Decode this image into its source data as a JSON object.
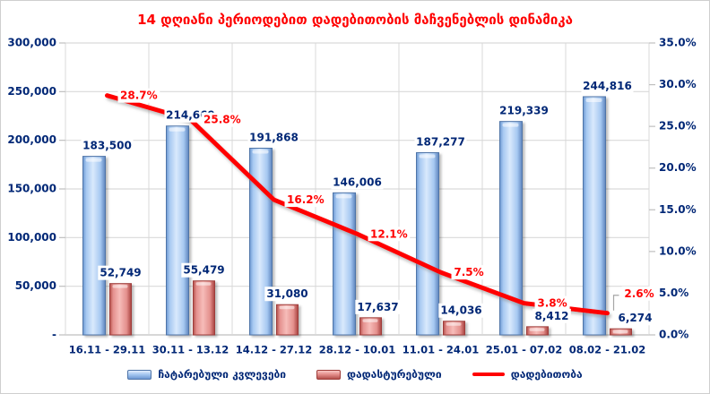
{
  "chart_data": {
    "type": "combo-bar-line",
    "title": "14 დღიანი პერიოდებით დადებითობის მაჩვენებლის დინამიკა",
    "categories": [
      "16.11 - 29.11",
      "30.11 - 13.12",
      "14.12 - 27.12",
      "28.12 - 10.01",
      "11.01 - 24.01",
      "25.01 - 07.02",
      "08.02 - 21.02"
    ],
    "series": [
      {
        "name": "ჩატარებული კვლევები",
        "type": "bar",
        "color_key": "blue",
        "values": [
          183500,
          214669,
          191868,
          146006,
          187277,
          219339,
          244816
        ],
        "labels": [
          "183,500",
          "214,669",
          "191,868",
          "146,006",
          "187,277",
          "219,339",
          "244,816"
        ]
      },
      {
        "name": "დადასტურებული",
        "type": "bar",
        "color_key": "red",
        "values": [
          52749,
          55479,
          31080,
          17637,
          14036,
          8412,
          6274
        ],
        "labels": [
          "52,749",
          "55,479",
          "31,080",
          "17,637",
          "14,036",
          "8,412",
          "6,274"
        ]
      },
      {
        "name": "დადებითობა",
        "type": "line",
        "axis": "right",
        "values": [
          28.7,
          25.8,
          16.2,
          12.1,
          7.5,
          3.8,
          2.6
        ],
        "labels": [
          "28.7%",
          "25.8%",
          "16.2%",
          "12.1%",
          "7.5%",
          "3.8%",
          "2.6%"
        ]
      }
    ],
    "left_axis": {
      "min": 0,
      "max": 300000,
      "tick_labels": [
        "300,000",
        "250,000",
        "200,000",
        "150,000",
        "100,000",
        "50,000",
        "-"
      ]
    },
    "right_axis": {
      "min": 0,
      "max": 35,
      "tick_labels": [
        "35.0%",
        "30.0%",
        "25.0%",
        "20.0%",
        "15.0%",
        "10.0%",
        "5.0%",
        "0.0%"
      ]
    },
    "grid": true,
    "legend_position": "bottom"
  },
  "colors": {
    "title": "#FF0000",
    "text": "#002776",
    "line": "#FF0000",
    "grid": "#D9D9D9",
    "axis": "#BFBFBF",
    "leader": "#A6A6A6",
    "label_bg": "#FFFFFF",
    "bar_blue_edge": "#4F74A8",
    "bar_red_edge": "#9E3D3A"
  }
}
